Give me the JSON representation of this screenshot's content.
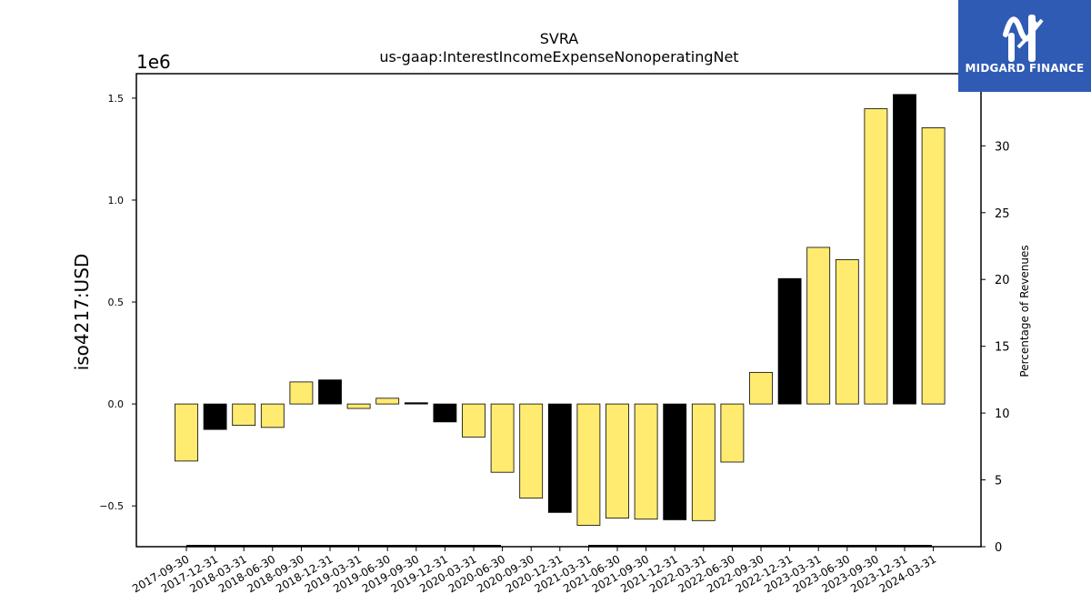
{
  "logo": {
    "text": "MIDGARD FINANCE",
    "icon": "midgard-logo-icon",
    "color": "#2f5bb4"
  },
  "chart_data": {
    "type": "bar",
    "title": "SVRA",
    "subtitle": "us-gaap:InterestIncomeExpenseNonoperatingNet",
    "ylabel": "iso4217:USD",
    "y2label": "Percentage of Revenues",
    "y_scale_label": "1e6",
    "ylim": [
      -0.7,
      1.62
    ],
    "y2lim": [
      0,
      35.4
    ],
    "yticks": [
      "−0.5",
      "0.0",
      "0.5",
      "1.0",
      "1.5"
    ],
    "y2ticks": [
      "0",
      "5",
      "10",
      "15",
      "20",
      "25",
      "30"
    ],
    "grid": false,
    "categories": [
      "2017-09-30",
      "2017-12-31",
      "2018-03-31",
      "2018-06-30",
      "2018-09-30",
      "2018-12-31",
      "2019-03-31",
      "2019-06-30",
      "2019-09-30",
      "2019-12-31",
      "2020-03-31",
      "2020-06-30",
      "2020-09-30",
      "2020-12-31",
      "2021-03-31",
      "2021-06-30",
      "2021-09-30",
      "2021-12-31",
      "2022-03-31",
      "2022-06-30",
      "2022-09-30",
      "2022-12-31",
      "2023-03-31",
      "2023-06-30",
      "2023-09-30",
      "2023-12-31",
      "2024-03-31"
    ],
    "values": [
      -0.28,
      -0.125,
      -0.105,
      -0.115,
      0.108,
      0.118,
      -0.022,
      0.028,
      0.006,
      -0.088,
      -0.162,
      -0.335,
      -0.462,
      -0.532,
      -0.595,
      -0.56,
      -0.565,
      -0.568,
      -0.572,
      -0.285,
      0.155,
      0.615,
      0.768,
      0.708,
      1.448,
      1.518,
      1.355
    ],
    "colors": [
      "#ffeb70",
      "#000000",
      "#ffeb70",
      "#ffeb70",
      "#ffeb70",
      "#000000",
      "#ffeb70",
      "#ffeb70",
      "#000000",
      "#000000",
      "#ffeb70",
      "#ffeb70",
      "#ffeb70",
      "#000000",
      "#ffeb70",
      "#ffeb70",
      "#ffeb70",
      "#000000",
      "#ffeb70",
      "#ffeb70",
      "#ffeb70",
      "#000000",
      "#ffeb70",
      "#ffeb70",
      "#ffeb70",
      "#000000",
      "#ffeb70"
    ]
  }
}
